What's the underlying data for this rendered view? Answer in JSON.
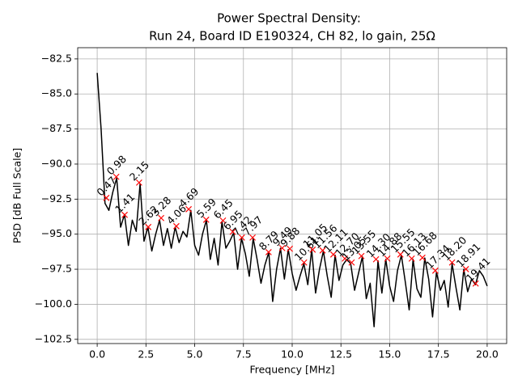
{
  "chart_data": {
    "type": "line",
    "title": [
      "Power Spectral Density:",
      "Run 24, Board ID E190324, CH 82, lo gain, 25Ω"
    ],
    "xlabel": "Frequency [MHz]",
    "ylabel": "PSD [dB Full Scale]",
    "color": "#000000",
    "grid": true,
    "xlim": [
      -1,
      21
    ],
    "ylim": [
      -102.8,
      -81.7
    ],
    "xticks": [
      {
        "value": 0,
        "label": "0.0"
      },
      2.5,
      {
        "value": 5,
        "label": "5.0"
      },
      7.5,
      {
        "value": 10,
        "label": "10.0"
      },
      12.5,
      {
        "value": 15,
        "label": "15.0"
      },
      17.5,
      {
        "value": 20,
        "label": "20.0"
      }
    ],
    "yticks": [
      {
        "value": -82.5,
        "label": "−82.5"
      },
      {
        "value": -85,
        "label": "−85.0"
      },
      {
        "value": -87.5,
        "label": "−87.5"
      },
      {
        "value": -90,
        "label": "−90.0"
      },
      {
        "value": -92.5,
        "label": "−92.5"
      },
      {
        "value": -95,
        "label": "−95.0"
      },
      {
        "value": -97.5,
        "label": "−97.5"
      },
      {
        "value": -100,
        "label": "−100.0"
      },
      {
        "value": -102.5,
        "label": "−102.5"
      }
    ],
    "x": [
      0,
      0.2,
      0.4,
      0.6,
      0.8,
      1,
      1.2,
      1.4,
      1.6,
      1.8,
      2,
      2.2,
      2.4,
      2.6,
      2.8,
      3,
      3.2,
      3.4,
      3.6,
      3.8,
      4,
      4.2,
      4.4,
      4.6,
      4.8,
      5,
      5.2,
      5.4,
      5.6,
      5.8,
      6,
      6.2,
      6.4,
      6.6,
      6.8,
      7,
      7.2,
      7.4,
      7.6,
      7.8,
      8,
      8.2,
      8.4,
      8.6,
      8.8,
      9,
      9.2,
      9.4,
      9.6,
      9.8,
      10,
      10.2,
      10.4,
      10.6,
      10.8,
      11,
      11.2,
      11.4,
      11.6,
      11.8,
      12,
      12.2,
      12.4,
      12.6,
      12.8,
      13,
      13.2,
      13.4,
      13.6,
      13.8,
      14,
      14.2,
      14.4,
      14.6,
      14.8,
      15,
      15.2,
      15.4,
      15.6,
      15.8,
      16,
      16.2,
      16.4,
      16.6,
      16.8,
      17,
      17.2,
      17.4,
      17.6,
      17.8,
      18,
      18.2,
      18.4,
      18.6,
      18.8,
      19,
      19.2,
      19.4,
      19.6,
      19.8,
      20
    ],
    "values": [
      -83.5,
      -87.5,
      -92.8,
      -93.3,
      -92.0,
      -91.0,
      -94.5,
      -93.6,
      -95.8,
      -94.0,
      -94.8,
      -91.4,
      -95.5,
      -94.5,
      -96.2,
      -95.0,
      -94.0,
      -95.8,
      -94.6,
      -96.0,
      -94.5,
      -95.6,
      -94.8,
      -95.2,
      -93.3,
      -95.8,
      -96.5,
      -95.0,
      -94.0,
      -96.8,
      -95.3,
      -97.2,
      -94.1,
      -96.0,
      -95.5,
      -94.9,
      -97.5,
      -95.3,
      -96.4,
      -98.0,
      -95.3,
      -96.8,
      -98.5,
      -97.2,
      -96.3,
      -99.8,
      -97.5,
      -96.0,
      -98.2,
      -96.1,
      -97.8,
      -99.0,
      -98.0,
      -97.1,
      -98.6,
      -96.1,
      -99.2,
      -97.5,
      -96.2,
      -98.0,
      -99.5,
      -96.5,
      -98.3,
      -97.2,
      -96.8,
      -97.1,
      -99.0,
      -97.8,
      -96.6,
      -99.6,
      -98.5,
      -101.6,
      -96.9,
      -99.2,
      -96.8,
      -98.7,
      -99.8,
      -97.6,
      -96.5,
      -98.4,
      -100.4,
      -96.8,
      -98.9,
      -99.5,
      -96.7,
      -98.2,
      -100.9,
      -97.7,
      -99.0,
      -98.3,
      -100.2,
      -97.1,
      -98.8,
      -100.4,
      -97.5,
      -99.1,
      -98.2,
      -98.6,
      -97.6,
      -98.0,
      -98.7
    ],
    "peaks": {
      "color": "#ff0000",
      "x": [
        0.47,
        0.98,
        1.41,
        2.15,
        2.62,
        3.28,
        4.06,
        4.69,
        5.59,
        6.45,
        6.95,
        7.42,
        7.97,
        8.79,
        9.49,
        9.88,
        10.61,
        11.05,
        11.56,
        12.11,
        12.7,
        13.05,
        13.55,
        14.3,
        14.88,
        15.55,
        16.13,
        16.68,
        17.34,
        18.2,
        18.91,
        19.41
      ],
      "labels": [
        "0.47",
        "0.98",
        "1.41",
        "2.15",
        "2.62",
        "3.28",
        "4.06",
        "4.69",
        "5.59",
        "6.45",
        "6.95",
        "7.42",
        "7.97",
        "8.79",
        "9.49",
        "9.88",
        "10.61",
        "11.05",
        "11.56",
        "12.11",
        "12.70",
        "13.05",
        "13.55",
        "14.30",
        "14.88",
        "15.55",
        "16.13",
        "16.68",
        "17.34",
        "18.20",
        "18.91",
        "19.41"
      ],
      "values": [
        -92.41,
        -90.91,
        -93.62,
        -91.32,
        -94.49,
        -93.85,
        -94.43,
        -93.22,
        -93.97,
        -94.03,
        -94.83,
        -95.24,
        -95.24,
        -96.28,
        -95.99,
        -96.04,
        -97.02,
        -96.1,
        -96.16,
        -96.45,
        -96.74,
        -97.02,
        -96.56,
        -96.79,
        -96.74,
        -96.45,
        -96.74,
        -96.68,
        -97.6,
        -97.02,
        -97.49,
        -98.52
      ]
    }
  }
}
